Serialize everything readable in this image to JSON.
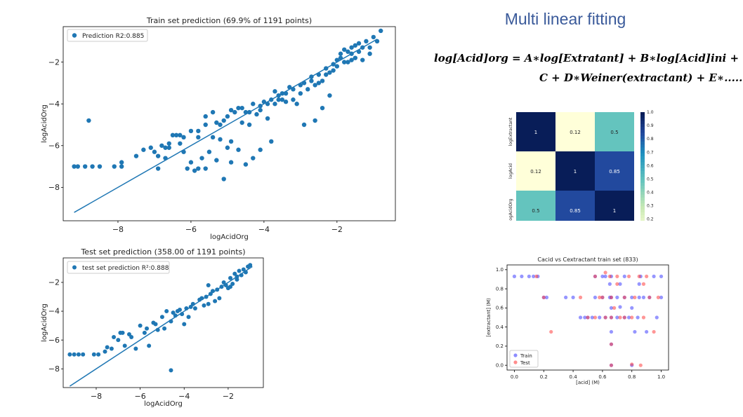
{
  "slide": {
    "title": "Multi linear fitting",
    "equation_line1": "log[Acid]org = A∗log[Extratant] + B∗log[Acid]ini +",
    "equation_line2": "C + D∗Weiner(extractant) + E∗.....",
    "colors": {
      "title": "#3a5a9a",
      "scatter": "#1f77b4",
      "train": "#4040ff",
      "test": "#ff4040"
    }
  },
  "chart_data": [
    {
      "type": "scatter",
      "title": "Train set prediction (69.9% of 1191 points)",
      "xlabel": "logAcidOrg",
      "ylabel": "logAcidOrg",
      "xlim": [
        -9.5,
        -0.4
      ],
      "ylim": [
        -9.6,
        -0.3
      ],
      "xticks": [
        -8,
        -6,
        -4,
        -2
      ],
      "yticks": [
        -8,
        -6,
        -4,
        -2
      ],
      "tick_labels_x": [
        "−8",
        "−6",
        "−4",
        "−2"
      ],
      "tick_labels_y": [
        "−8",
        "−6",
        "−4",
        "−2"
      ],
      "legend": [
        "Prediction R2:0.885"
      ],
      "legend_position": "top-left",
      "fit_line": [
        [
          -9.2,
          -9.2
        ],
        [
          -0.9,
          -0.9
        ]
      ],
      "points": [
        [
          -9.2,
          -7.0
        ],
        [
          -9.1,
          -7.0
        ],
        [
          -8.9,
          -7.0
        ],
        [
          -8.8,
          -4.8
        ],
        [
          -8.7,
          -7.0
        ],
        [
          -8.5,
          -7.0
        ],
        [
          -8.1,
          -7.0
        ],
        [
          -7.9,
          -7.0
        ],
        [
          -7.9,
          -6.8
        ],
        [
          -7.5,
          -6.5
        ],
        [
          -7.3,
          -6.2
        ],
        [
          -7.1,
          -6.1
        ],
        [
          -6.9,
          -7.1
        ],
        [
          -6.9,
          -6.5
        ],
        [
          -6.8,
          -6.0
        ],
        [
          -6.7,
          -6.1
        ],
        [
          -6.7,
          -6.6
        ],
        [
          -6.6,
          -5.9
        ],
        [
          -6.5,
          -5.5
        ],
        [
          -6.4,
          -5.5
        ],
        [
          -6.3,
          -5.9
        ],
        [
          -6.2,
          -6.3
        ],
        [
          -6.2,
          -5.6
        ],
        [
          -6.1,
          -7.1
        ],
        [
          -6.0,
          -6.8
        ],
        [
          -5.9,
          -7.2
        ],
        [
          -5.8,
          -7.1
        ],
        [
          -5.8,
          -5.3
        ],
        [
          -5.7,
          -6.6
        ],
        [
          -5.6,
          -7.1
        ],
        [
          -5.6,
          -5.0
        ],
        [
          -5.5,
          -6.3
        ],
        [
          -5.4,
          -5.6
        ],
        [
          -5.3,
          -6.7
        ],
        [
          -5.3,
          -4.9
        ],
        [
          -5.2,
          -5.7
        ],
        [
          -5.1,
          -7.6
        ],
        [
          -5.1,
          -4.8
        ],
        [
          -5.0,
          -6.1
        ],
        [
          -4.9,
          -5.8
        ],
        [
          -4.9,
          -6.8
        ],
        [
          -4.8,
          -4.4
        ],
        [
          -4.7,
          -6.2
        ],
        [
          -4.6,
          -4.9
        ],
        [
          -4.5,
          -6.9
        ],
        [
          -4.4,
          -5.0
        ],
        [
          -4.4,
          -4.4
        ],
        [
          -4.3,
          -6.6
        ],
        [
          -4.2,
          -4.5
        ],
        [
          -4.1,
          -6.2
        ],
        [
          -4.1,
          -4.1
        ],
        [
          -3.9,
          -4.0
        ],
        [
          -3.9,
          -4.7
        ],
        [
          -3.8,
          -5.8
        ],
        [
          -3.7,
          -4.0
        ],
        [
          -3.6,
          -3.8
        ],
        [
          -3.5,
          -3.5
        ],
        [
          -3.4,
          -3.9
        ],
        [
          -3.3,
          -3.2
        ],
        [
          -3.2,
          -3.8
        ],
        [
          -3.1,
          -4.0
        ],
        [
          -3.0,
          -3.5
        ],
        [
          -2.9,
          -3.0
        ],
        [
          -2.9,
          -5.0
        ],
        [
          -2.8,
          -3.3
        ],
        [
          -2.7,
          -2.7
        ],
        [
          -2.6,
          -3.1
        ],
        [
          -2.6,
          -4.8
        ],
        [
          -2.5,
          -3.0
        ],
        [
          -2.4,
          -2.9
        ],
        [
          -2.4,
          -4.2
        ],
        [
          -2.3,
          -2.6
        ],
        [
          -2.2,
          -2.5
        ],
        [
          -2.2,
          -3.6
        ],
        [
          -2.1,
          -2.4
        ],
        [
          -2.0,
          -2.2
        ],
        [
          -1.9,
          -1.8
        ],
        [
          -1.8,
          -2.0
        ],
        [
          -1.8,
          -1.4
        ],
        [
          -1.7,
          -2.0
        ],
        [
          -1.6,
          -1.6
        ],
        [
          -1.6,
          -1.3
        ],
        [
          -1.5,
          -1.8
        ],
        [
          -1.4,
          -1.1
        ],
        [
          -1.4,
          -1.5
        ],
        [
          -1.3,
          -1.9
        ],
        [
          -1.2,
          -1.0
        ],
        [
          -1.1,
          -1.3
        ],
        [
          -1.1,
          -1.6
        ],
        [
          -1.0,
          -0.8
        ],
        [
          -0.9,
          -1.0
        ],
        [
          -0.8,
          -0.5
        ],
        [
          -5.6,
          -4.6
        ],
        [
          -5.4,
          -4.4
        ],
        [
          -4.6,
          -4.2
        ],
        [
          -4.0,
          -3.9
        ],
        [
          -3.6,
          -3.6
        ],
        [
          -3.0,
          -3.1
        ],
        [
          -2.7,
          -2.9
        ],
        [
          -2.5,
          -2.6
        ],
        [
          -2.1,
          -2.1
        ],
        [
          -1.9,
          -1.6
        ],
        [
          -1.7,
          -1.5
        ],
        [
          -1.5,
          -1.2
        ],
        [
          -1.3,
          -1.3
        ],
        [
          -4.9,
          -4.3
        ],
        [
          -4.5,
          -4.4
        ],
        [
          -4.3,
          -4.0
        ],
        [
          -3.8,
          -3.8
        ],
        [
          -3.4,
          -3.5
        ],
        [
          -3.2,
          -3.3
        ],
        [
          -6.3,
          -5.5
        ],
        [
          -6.0,
          -5.3
        ],
        [
          -5.8,
          -5.6
        ],
        [
          -5.0,
          -4.6
        ],
        [
          -4.7,
          -4.2
        ],
        [
          -2.3,
          -2.3
        ],
        [
          -2.0,
          -1.9
        ],
        [
          -1.6,
          -1.9
        ],
        [
          -3.7,
          -3.4
        ],
        [
          -3.5,
          -3.8
        ],
        [
          -4.1,
          -4.3
        ],
        [
          -5.2,
          -5.0
        ],
        [
          -6.6,
          -6.1
        ],
        [
          -7.0,
          -6.3
        ]
      ]
    },
    {
      "type": "scatter",
      "title": "Test set prediction (358.00 of 1191 points)",
      "xlabel": "logAcidOrg",
      "ylabel": "logAcidOrg",
      "xlim": [
        -9.5,
        -0.4
      ],
      "ylim": [
        -9.3,
        -0.3
      ],
      "xticks": [
        -8,
        -6,
        -4,
        -2
      ],
      "yticks": [
        -8,
        -6,
        -4,
        -2
      ],
      "tick_labels_x": [
        "−8",
        "−6",
        "−4",
        "−2"
      ],
      "tick_labels_y": [
        "−8",
        "−6",
        "−4",
        "−2"
      ],
      "legend": [
        "test set prediction R²:0.888"
      ],
      "legend_position": "top-left",
      "fit_line": [
        [
          -9.2,
          -9.2
        ],
        [
          -0.9,
          -0.9
        ]
      ],
      "points": [
        [
          -9.2,
          -7.0
        ],
        [
          -9.0,
          -7.0
        ],
        [
          -8.8,
          -7.0
        ],
        [
          -8.6,
          -7.0
        ],
        [
          -8.1,
          -7.0
        ],
        [
          -7.9,
          -7.0
        ],
        [
          -7.6,
          -6.8
        ],
        [
          -7.5,
          -6.5
        ],
        [
          -7.3,
          -6.6
        ],
        [
          -7.2,
          -5.8
        ],
        [
          -7.0,
          -6.0
        ],
        [
          -6.9,
          -5.5
        ],
        [
          -6.8,
          -5.5
        ],
        [
          -6.7,
          -6.4
        ],
        [
          -6.4,
          -5.8
        ],
        [
          -6.2,
          -6.6
        ],
        [
          -6.0,
          -5.0
        ],
        [
          -5.8,
          -5.5
        ],
        [
          -5.7,
          -5.2
        ],
        [
          -5.6,
          -6.4
        ],
        [
          -5.4,
          -4.8
        ],
        [
          -5.2,
          -5.3
        ],
        [
          -5.0,
          -4.4
        ],
        [
          -4.9,
          -5.2
        ],
        [
          -4.8,
          -4.0
        ],
        [
          -4.6,
          -8.1
        ],
        [
          -4.6,
          -4.7
        ],
        [
          -4.5,
          -4.1
        ],
        [
          -4.3,
          -4.0
        ],
        [
          -4.1,
          -4.2
        ],
        [
          -4.0,
          -4.9
        ],
        [
          -3.9,
          -3.8
        ],
        [
          -3.8,
          -4.4
        ],
        [
          -3.6,
          -3.5
        ],
        [
          -3.5,
          -3.8
        ],
        [
          -3.3,
          -3.2
        ],
        [
          -3.1,
          -3.6
        ],
        [
          -3.0,
          -3.0
        ],
        [
          -2.9,
          -2.2
        ],
        [
          -2.8,
          -2.8
        ],
        [
          -2.6,
          -3.3
        ],
        [
          -2.5,
          -2.5
        ],
        [
          -2.4,
          -3.1
        ],
        [
          -2.3,
          -2.3
        ],
        [
          -2.2,
          -2.0
        ],
        [
          -2.0,
          -2.4
        ],
        [
          -1.9,
          -1.7
        ],
        [
          -1.8,
          -2.1
        ],
        [
          -1.7,
          -1.4
        ],
        [
          -1.6,
          -1.6
        ],
        [
          -1.5,
          -1.2
        ],
        [
          -1.4,
          -1.5
        ],
        [
          -1.3,
          -1.1
        ],
        [
          -1.2,
          -1.3
        ],
        [
          -1.1,
          -0.9
        ],
        [
          -1.0,
          -0.8
        ],
        [
          -4.2,
          -3.9
        ],
        [
          -3.7,
          -3.7
        ],
        [
          -3.2,
          -3.1
        ],
        [
          -2.7,
          -2.6
        ],
        [
          -2.1,
          -2.2
        ],
        [
          -1.6,
          -1.8
        ],
        [
          -5.3,
          -4.9
        ],
        [
          -6.5,
          -5.6
        ],
        [
          -4.4,
          -4.3
        ],
        [
          -2.9,
          -3.5
        ],
        [
          -1.9,
          -2.3
        ]
      ]
    },
    {
      "type": "heatmap",
      "title": "",
      "row_labels": [
        "logExtractant",
        "logAcid",
        "logAcidOrg"
      ],
      "col_labels": [
        "logExtractant",
        "logAcid",
        "logAcidOrg"
      ],
      "values": [
        [
          1,
          0.12,
          0.5
        ],
        [
          0.12,
          1,
          0.85
        ],
        [
          0.5,
          0.85,
          1
        ]
      ],
      "cell_labels": [
        [
          "1",
          "0.12",
          "0.5"
        ],
        [
          "0.12",
          "1",
          "0.85"
        ],
        [
          "0.5",
          "0.85",
          "1"
        ]
      ],
      "colorbar_ticks": [
        "0.2",
        "0.3",
        "0.4",
        "0.5",
        "0.6",
        "0.7",
        "0.8",
        "0.9",
        "1.0"
      ],
      "colorbar_range": [
        0.12,
        1.0
      ]
    },
    {
      "type": "scatter",
      "title": "Cacid vs Cextractant train set (833)",
      "xlabel": "[acid] (M)",
      "ylabel": "[extractant] (M)",
      "xlim": [
        -0.05,
        1.05
      ],
      "ylim": [
        -0.05,
        1.05
      ],
      "xticks": [
        0.0,
        0.2,
        0.4,
        0.6,
        0.8,
        1.0
      ],
      "yticks": [
        0.0,
        0.2,
        0.4,
        0.6,
        0.8,
        1.0
      ],
      "tick_labels_x": [
        "0.0",
        "0.2",
        "0.4",
        "0.6",
        "0.8",
        "1.0"
      ],
      "tick_labels_y": [
        "0.0",
        "0.2",
        "0.4",
        "0.6",
        "0.8",
        "1.0"
      ],
      "legend": [
        "Train",
        "Test"
      ],
      "legend_position": "bottom-left",
      "series": [
        {
          "name": "Train",
          "points": [
            [
              0.0,
              0.93
            ],
            [
              0.05,
              0.93
            ],
            [
              0.1,
              0.93
            ],
            [
              0.13,
              0.93
            ],
            [
              0.16,
              0.93
            ],
            [
              0.2,
              0.71
            ],
            [
              0.22,
              0.71
            ],
            [
              0.45,
              0.5
            ],
            [
              0.48,
              0.5
            ],
            [
              0.5,
              0.5
            ],
            [
              0.53,
              0.5
            ],
            [
              0.55,
              0.71
            ],
            [
              0.55,
              0.93
            ],
            [
              0.58,
              0.5
            ],
            [
              0.6,
              0.71
            ],
            [
              0.6,
              0.93
            ],
            [
              0.62,
              0.5
            ],
            [
              0.65,
              0.71
            ],
            [
              0.65,
              0.85
            ],
            [
              0.66,
              0.0
            ],
            [
              0.66,
              0.22
            ],
            [
              0.66,
              0.35
            ],
            [
              0.66,
              0.5
            ],
            [
              0.66,
              0.6
            ],
            [
              0.66,
              0.71
            ],
            [
              0.66,
              0.93
            ],
            [
              0.7,
              0.5
            ],
            [
              0.7,
              0.71
            ],
            [
              0.72,
              0.85
            ],
            [
              0.75,
              0.5
            ],
            [
              0.75,
              0.71
            ],
            [
              0.75,
              0.93
            ],
            [
              0.78,
              0.5
            ],
            [
              0.8,
              0.0
            ],
            [
              0.8,
              0.6
            ],
            [
              0.8,
              0.71
            ],
            [
              0.82,
              0.35
            ],
            [
              0.84,
              0.5
            ],
            [
              0.85,
              0.71
            ],
            [
              0.86,
              0.93
            ],
            [
              0.88,
              0.71
            ],
            [
              0.9,
              0.35
            ],
            [
              0.92,
              0.71
            ],
            [
              0.95,
              0.93
            ],
            [
              0.97,
              0.5
            ],
            [
              1.0,
              0.71
            ],
            [
              1.0,
              0.93
            ],
            [
              0.4,
              0.71
            ],
            [
              0.35,
              0.71
            ],
            [
              0.62,
              0.93
            ],
            [
              0.72,
              0.61
            ],
            [
              0.85,
              0.85
            ]
          ]
        },
        {
          "name": "Test",
          "points": [
            [
              0.15,
              0.93
            ],
            [
              0.2,
              0.71
            ],
            [
              0.25,
              0.35
            ],
            [
              0.45,
              0.71
            ],
            [
              0.5,
              0.5
            ],
            [
              0.55,
              0.93
            ],
            [
              0.6,
              0.71
            ],
            [
              0.62,
              0.5
            ],
            [
              0.65,
              0.93
            ],
            [
              0.66,
              0.0
            ],
            [
              0.66,
              0.22
            ],
            [
              0.66,
              0.5
            ],
            [
              0.66,
              0.71
            ],
            [
              0.7,
              0.93
            ],
            [
              0.72,
              0.5
            ],
            [
              0.75,
              0.71
            ],
            [
              0.78,
              0.93
            ],
            [
              0.8,
              0.01
            ],
            [
              0.8,
              0.5
            ],
            [
              0.82,
              0.71
            ],
            [
              0.85,
              0.93
            ],
            [
              0.86,
              0.0
            ],
            [
              0.88,
              0.5
            ],
            [
              0.9,
              0.93
            ],
            [
              0.92,
              0.71
            ],
            [
              0.95,
              0.35
            ],
            [
              0.98,
              0.71
            ],
            [
              0.62,
              0.97
            ],
            [
              0.7,
              0.85
            ],
            [
              0.58,
              0.71
            ],
            [
              0.68,
              0.6
            ],
            [
              0.88,
              0.85
            ],
            [
              0.55,
              0.5
            ],
            [
              0.75,
              0.5
            ]
          ]
        }
      ]
    }
  ]
}
